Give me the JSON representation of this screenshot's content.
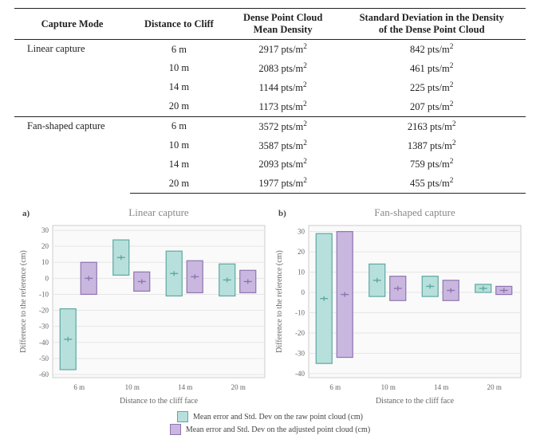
{
  "table": {
    "columns": [
      "Capture Mode",
      "Distance to Cliff",
      "Dense Point Cloud Mean Density",
      "Standard Deviation in the Density of the Dense Point Cloud"
    ],
    "groups": [
      {
        "mode": "Linear capture",
        "rows": [
          {
            "dist": "6 m",
            "mean": "2917 pts/m",
            "sd": "842 pts/m"
          },
          {
            "dist": "10 m",
            "mean": "2083 pts/m",
            "sd": "461 pts/m"
          },
          {
            "dist": "14 m",
            "mean": "1144 pts/m",
            "sd": "225 pts/m"
          },
          {
            "dist": "20 m",
            "mean": "1173 pts/m",
            "sd": "207 pts/m"
          }
        ]
      },
      {
        "mode": "Fan-shaped capture",
        "rows": [
          {
            "dist": "6 m",
            "mean": "3572 pts/m",
            "sd": "2163 pts/m"
          },
          {
            "dist": "10 m",
            "mean": "3587 pts/m",
            "sd": "1387 pts/m"
          },
          {
            "dist": "14 m",
            "mean": "2093 pts/m",
            "sd": "759 pts/m"
          },
          {
            "dist": "20 m",
            "mean": "1977 pts/m",
            "sd": "455 pts/m"
          }
        ]
      }
    ]
  },
  "charts": {
    "panel_labels": {
      "a": "a)",
      "b": "b)"
    },
    "titles": {
      "a": "Linear capture",
      "b": "Fan-shaped capture"
    },
    "xlabel": "Distance to the cliff face",
    "ylabel": "Difference to the reference (cm)",
    "xticks": [
      "6 m",
      "10 m",
      "14 m",
      "20 m"
    ],
    "a": {
      "yticks": [
        -60,
        -50,
        -40,
        -30,
        -20,
        -10,
        0,
        10,
        20,
        30
      ],
      "ylim": [
        -62,
        33
      ],
      "data": [
        {
          "raw": {
            "mean": -38,
            "sd": 19
          },
          "adj": {
            "mean": 0,
            "sd": 10
          }
        },
        {
          "raw": {
            "mean": 13,
            "sd": 11
          },
          "adj": {
            "mean": -2,
            "sd": 6
          }
        },
        {
          "raw": {
            "mean": 3,
            "sd": 14
          },
          "adj": {
            "mean": 1,
            "sd": 10
          }
        },
        {
          "raw": {
            "mean": -1,
            "sd": 10
          },
          "adj": {
            "mean": -2,
            "sd": 7
          }
        }
      ]
    },
    "b": {
      "yticks": [
        -40,
        -30,
        -20,
        -10,
        0,
        10,
        20,
        30
      ],
      "ylim": [
        -42,
        33
      ],
      "data": [
        {
          "raw": {
            "mean": -3,
            "sd": 32
          },
          "adj": {
            "mean": -1,
            "sd": 31
          }
        },
        {
          "raw": {
            "mean": 6,
            "sd": 8
          },
          "adj": {
            "mean": 2,
            "sd": 6
          }
        },
        {
          "raw": {
            "mean": 3,
            "sd": 5
          },
          "adj": {
            "mean": 1,
            "sd": 5
          }
        },
        {
          "raw": {
            "mean": 2,
            "sd": 2
          },
          "adj": {
            "mean": 1,
            "sd": 2
          }
        }
      ]
    },
    "colors": {
      "raw_fill": "#b7e0dc",
      "raw_stroke": "#5fa8a1",
      "adj_fill": "#c9b7e0",
      "adj_stroke": "#8f75b0",
      "bg": "#fafafa",
      "grid": "#e6e6e6",
      "border": "#cccccc",
      "axis_text": "#666666",
      "title_text": "#888888"
    },
    "font": {
      "tick": 9,
      "label": 10,
      "title": 13,
      "panel": 11
    },
    "legend": [
      "Mean error and Std. Dev on the raw point cloud (cm)",
      "Mean error and Std. Dev on the adjusted point cloud (cm)"
    ]
  }
}
